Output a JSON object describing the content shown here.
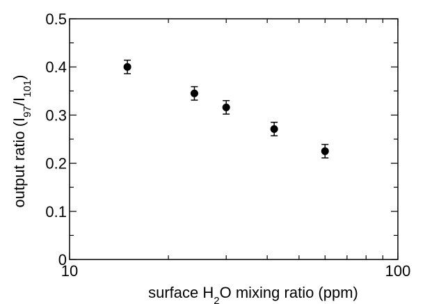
{
  "chart_data": {
    "type": "scatter",
    "xscale": "log",
    "xlim": [
      10,
      100
    ],
    "ylim": [
      0,
      0.5
    ],
    "x_major_ticks": [
      10,
      100
    ],
    "x_major_tick_labels": [
      "10",
      "100"
    ],
    "y_ticks": [
      0,
      0.1,
      0.2,
      0.3,
      0.4,
      0.5
    ],
    "y_tick_labels": [
      "0",
      "0.1",
      "0.2",
      "0.3",
      "0.4",
      "0.5"
    ],
    "xlabel": {
      "before": "surface H",
      "sub": "2",
      "after": "O mixing ratio (ppm)"
    },
    "ylabel": {
      "t1": "output ratio (I",
      "s1": "97",
      "t2": "/I",
      "s2": "101",
      "t3": ")"
    },
    "grid": false,
    "legend": "none",
    "marker_color": "#000000",
    "points": [
      {
        "x": 15.0,
        "y": 0.4,
        "err": 0.014
      },
      {
        "x": 24.0,
        "y": 0.345,
        "err": 0.014
      },
      {
        "x": 30.0,
        "y": 0.316,
        "err": 0.014
      },
      {
        "x": 42.0,
        "y": 0.271,
        "err": 0.014
      },
      {
        "x": 60.0,
        "y": 0.225,
        "err": 0.014
      }
    ]
  }
}
